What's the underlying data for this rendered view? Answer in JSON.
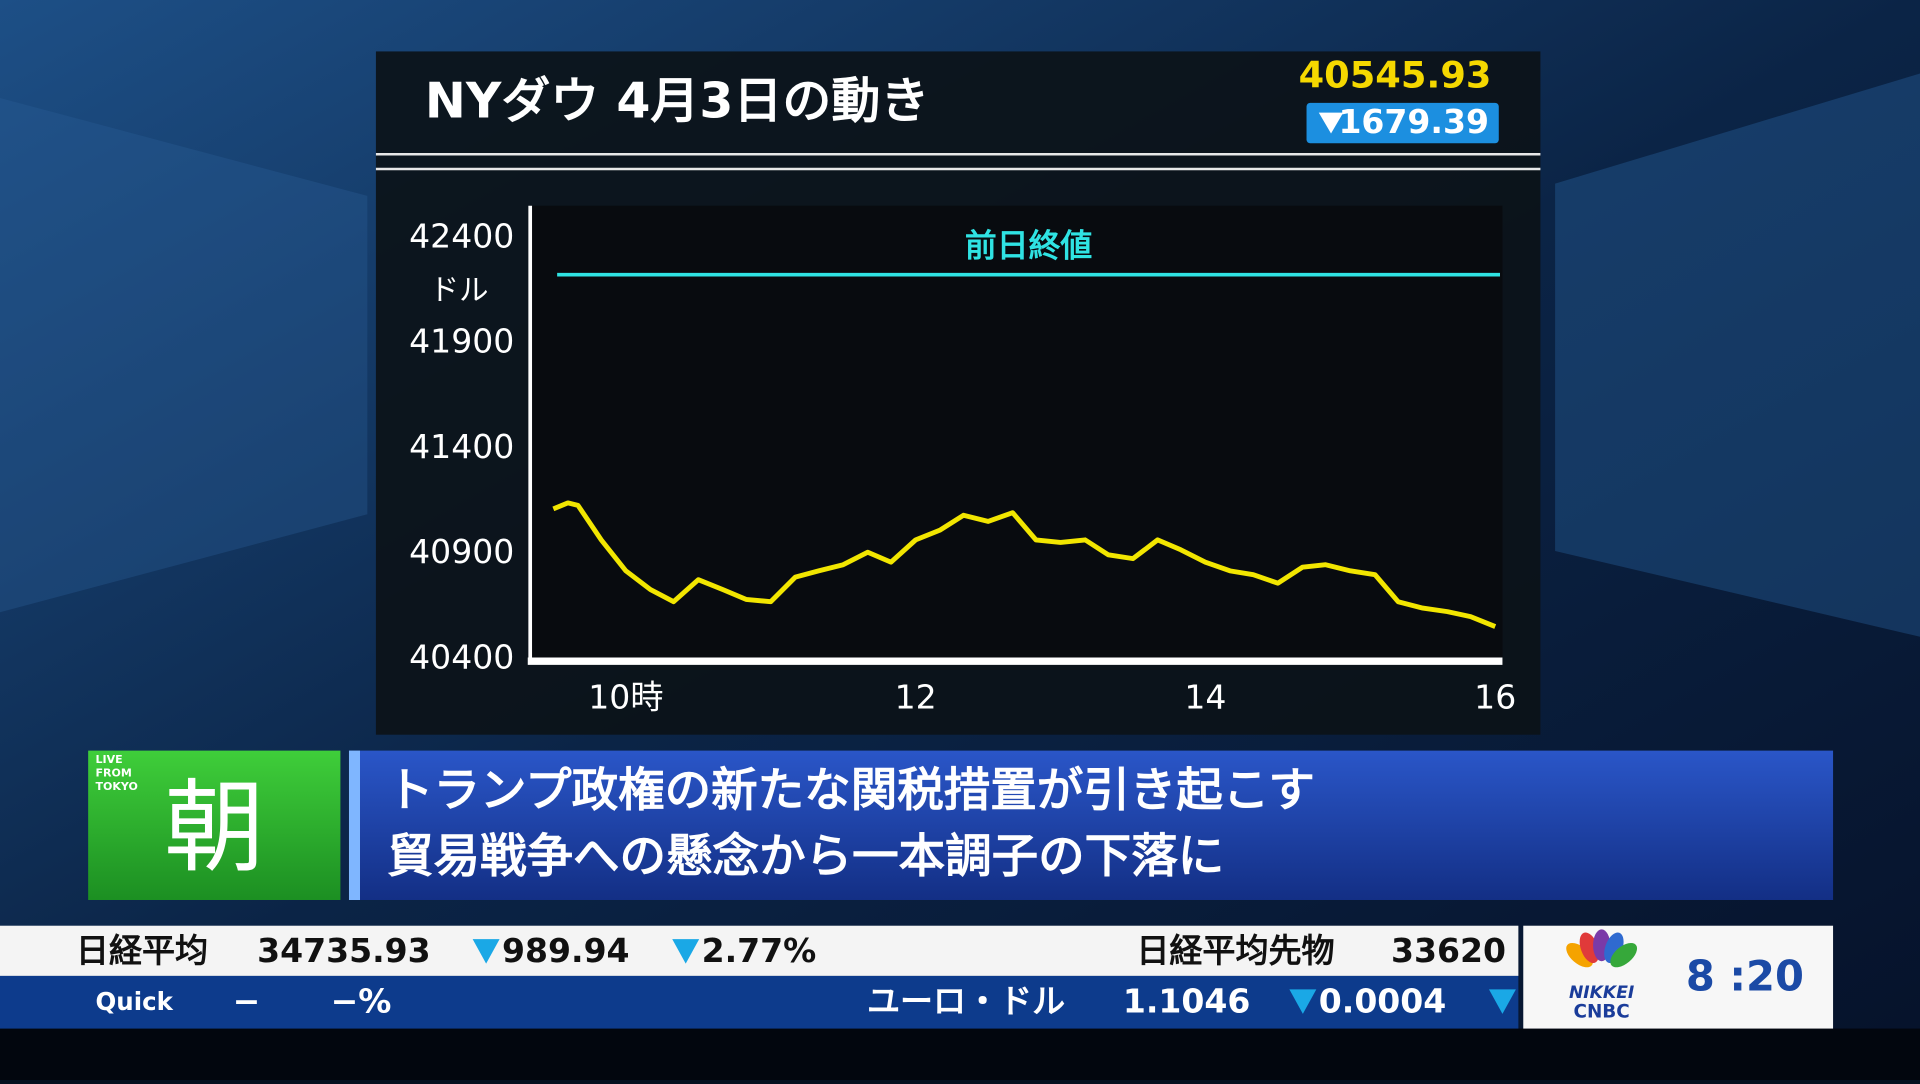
{
  "chart_data": {
    "type": "line",
    "title": "NYダウ 4月3日の動き",
    "y_label": "ドル",
    "x": [
      9.5,
      9.6,
      9.67,
      9.83,
      10,
      10.17,
      10.33,
      10.5,
      10.67,
      10.83,
      11,
      11.17,
      11.33,
      11.5,
      11.67,
      11.83,
      12,
      12.17,
      12.33,
      12.5,
      12.67,
      12.83,
      13,
      13.17,
      13.33,
      13.5,
      13.67,
      13.83,
      14,
      14.17,
      14.33,
      14.5,
      14.67,
      14.83,
      15,
      15.17,
      15.33,
      15.5,
      15.67,
      15.83,
      16
    ],
    "values": [
      41112,
      41141,
      41129,
      40965,
      40818,
      40729,
      40671,
      40776,
      40729,
      40682,
      40671,
      40788,
      40818,
      40847,
      40906,
      40859,
      40965,
      41012,
      41082,
      41053,
      41094,
      40965,
      40953,
      40965,
      40894,
      40876,
      40965,
      40918,
      40859,
      40818,
      40800,
      40759,
      40835,
      40847,
      40818,
      40800,
      40671,
      40641,
      40624,
      40600,
      40553
    ],
    "color": "#f2e600",
    "xlim": [
      9.34,
      16.05
    ],
    "xticks": [
      {
        "value": 10,
        "label": "10時"
      },
      12,
      14,
      16
    ],
    "ylim": [
      40400,
      42553
    ],
    "yticks": [
      40400,
      40900,
      41400,
      41900,
      42400
    ],
    "grid": false,
    "reference_line": {
      "label": "前日終値",
      "value": 42225.32,
      "color": "#2fe3e3"
    }
  },
  "header": {
    "last": "40545.93",
    "change": "1679.39"
  },
  "badge": {
    "small": "LIVE FROM TOKYO",
    "big": "朝"
  },
  "caption": [
    "トランプ政権の新たな関税措置が引き起こす",
    "貿易戦争への懸念から一本調子の下落に"
  ],
  "ticker": {
    "top": {
      "name": "日経平均",
      "value": "34735.93",
      "change": "989.94",
      "pct": "2.77%",
      "name2": "日経平均先物",
      "value2": "33620"
    },
    "bottom": {
      "source": "Quick",
      "dash": "−",
      "dash_pct": "−%",
      "name": "ユーロ・ドル",
      "value": "1.1046",
      "change": "0.0004"
    }
  },
  "logo": {
    "line1": "NIKKEI",
    "line2": "CNBC",
    "time": "8 :20"
  }
}
